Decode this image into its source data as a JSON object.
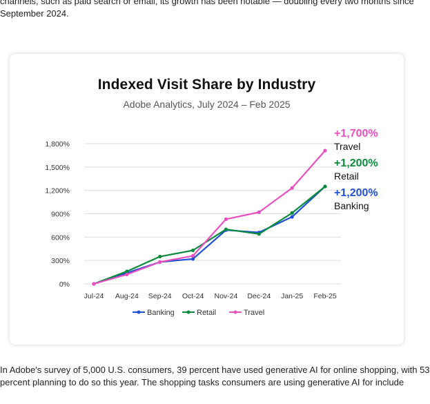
{
  "article": {
    "top_lines": [
      "channels, such as paid search or email, its growth has been notable — doubling every two months since",
      "September 2024."
    ],
    "bottom_lines": [
      "In Adobe's survey of 5,000 U.S. consumers, 39 percent have used generative AI for online shopping, with 53",
      "percent planning to do so this year. The shopping tasks consumers are using generative AI for include"
    ]
  },
  "colors": {
    "Banking": "#1f4fd6",
    "Retail": "#0a8a3c",
    "Travel": "#ec4fbf"
  },
  "chart_data": {
    "type": "line",
    "title": "Indexed Visit Share by Industry",
    "subtitle": "Adobe Analytics, July 2024 – Feb 2025",
    "categories": [
      "Jul-24",
      "Aug-24",
      "Sep-24",
      "Oct-24",
      "Nov-24",
      "Dec-24",
      "Jan-25",
      "Feb-25"
    ],
    "y_ticks": [
      "0%",
      "300%",
      "600%",
      "900%",
      "1,200%",
      "1,500%",
      "1,800%"
    ],
    "ylim": [
      0,
      1800
    ],
    "grid": true,
    "legend_position": "bottom",
    "series": [
      {
        "name": "Banking",
        "values": [
          0,
          140,
          280,
          320,
          690,
          660,
          860,
          1250
        ]
      },
      {
        "name": "Retail",
        "values": [
          0,
          160,
          350,
          430,
          700,
          640,
          910,
          1250
        ]
      },
      {
        "name": "Travel",
        "values": [
          0,
          120,
          280,
          360,
          830,
          920,
          1230,
          1710
        ]
      }
    ],
    "annotations": [
      {
        "series": "Travel",
        "value_label": "+1,700%",
        "name_label": "Travel"
      },
      {
        "series": "Retail",
        "value_label": "+1,200%",
        "name_label": "Retail"
      },
      {
        "series": "Banking",
        "value_label": "+1,200%",
        "name_label": "Banking"
      }
    ]
  }
}
